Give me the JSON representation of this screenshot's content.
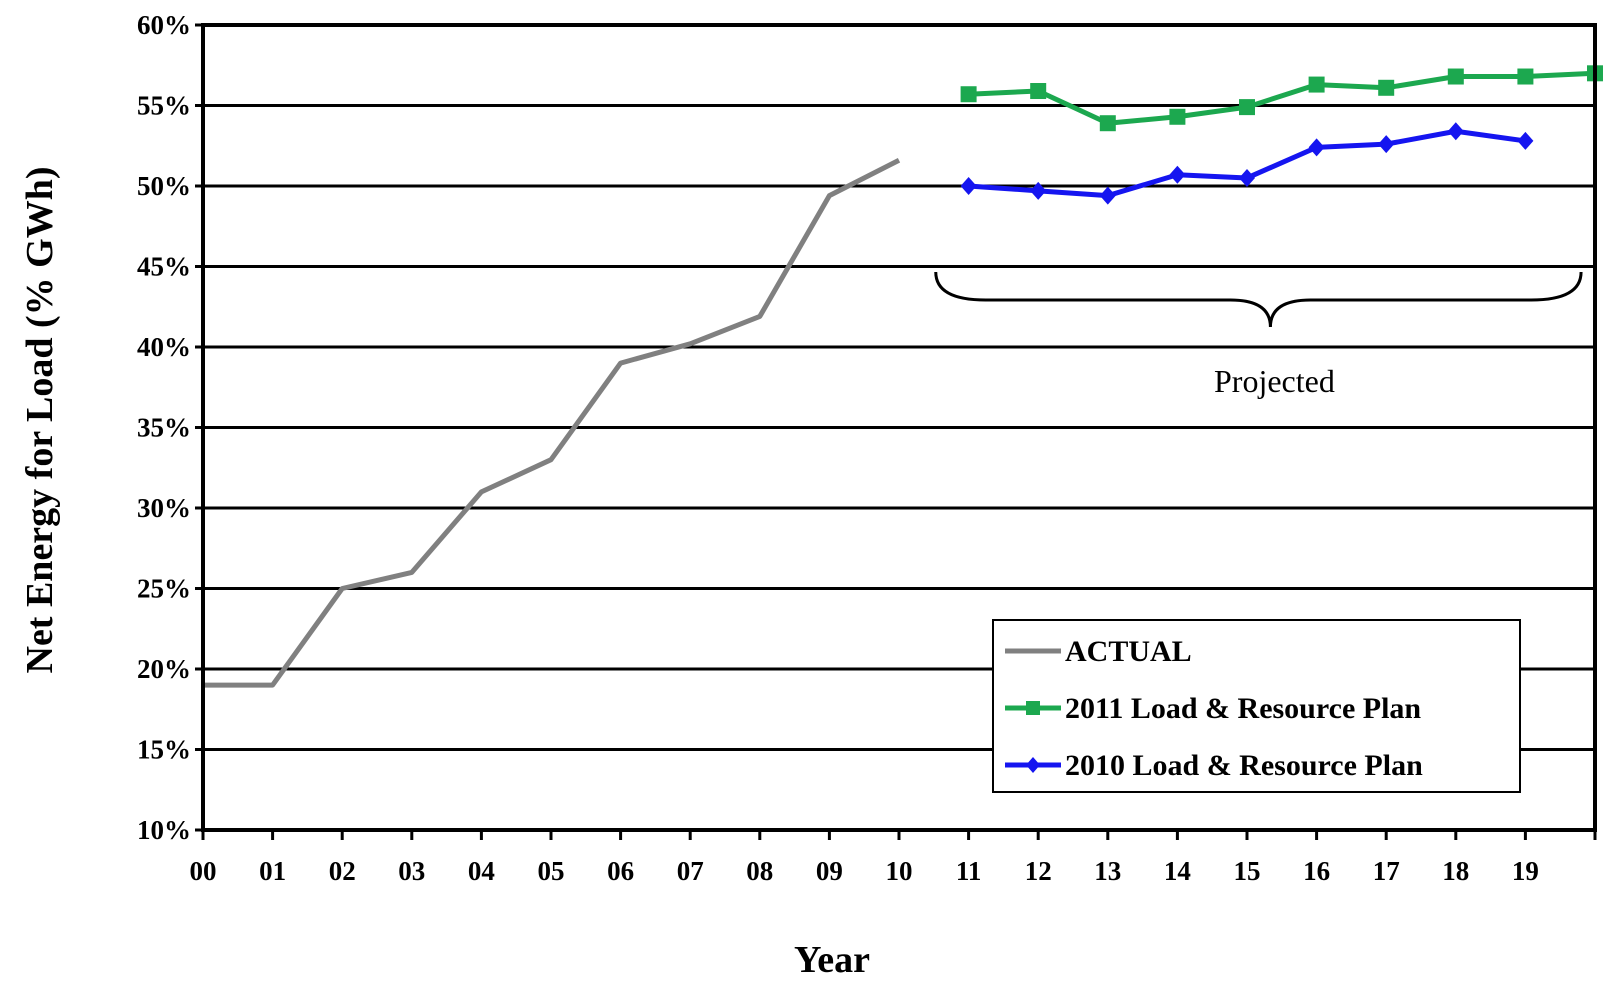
{
  "colors": {
    "actual": "#808080",
    "plan_2011": "#1ca84f",
    "plan_2010": "#1515f0",
    "grid": "#000000"
  },
  "chart_data": {
    "type": "line",
    "xlabel": "Year",
    "ylabel": "Net Energy for Load (% GWh)",
    "categories": [
      "00",
      "01",
      "02",
      "03",
      "04",
      "05",
      "06",
      "07",
      "08",
      "09",
      "10",
      "11",
      "12",
      "13",
      "14",
      "15",
      "16",
      "17",
      "18",
      "19",
      ""
    ],
    "ylim": [
      10,
      60
    ],
    "yticks": [
      "10%",
      "15%",
      "20%",
      "25%",
      "30%",
      "35%",
      "40%",
      "45%",
      "50%",
      "55%",
      "60%"
    ],
    "grid": "horizontal",
    "legend_position": "bottom-right",
    "series": [
      {
        "name": "ACTUAL",
        "color_key": "actual",
        "marker": "none",
        "x": [
          0,
          1,
          2,
          3,
          4,
          5,
          6,
          7,
          8,
          9,
          10
        ],
        "values": [
          19,
          19,
          25,
          26,
          31,
          33,
          39,
          40.2,
          41.9,
          49.4,
          51.6
        ]
      },
      {
        "name": "2011 Load & Resource Plan",
        "color_key": "plan_2011",
        "marker": "square",
        "x": [
          11,
          12,
          13,
          14,
          15,
          16,
          17,
          18,
          19,
          20
        ],
        "values": [
          55.7,
          55.9,
          53.9,
          54.3,
          54.9,
          56.3,
          56.1,
          56.8,
          56.8,
          57.0
        ]
      },
      {
        "name": "2010 Load & Resource Plan",
        "color_key": "plan_2010",
        "marker": "diamond",
        "x": [
          11,
          12,
          13,
          14,
          15,
          16,
          17,
          18,
          19
        ],
        "values": [
          50.0,
          49.7,
          49.4,
          50.7,
          50.5,
          52.4,
          52.6,
          53.4,
          52.8
        ]
      }
    ],
    "annotations": [
      {
        "text": "Projected",
        "brace_from_x": 10.6,
        "brace_to_x": 19.8
      }
    ]
  }
}
